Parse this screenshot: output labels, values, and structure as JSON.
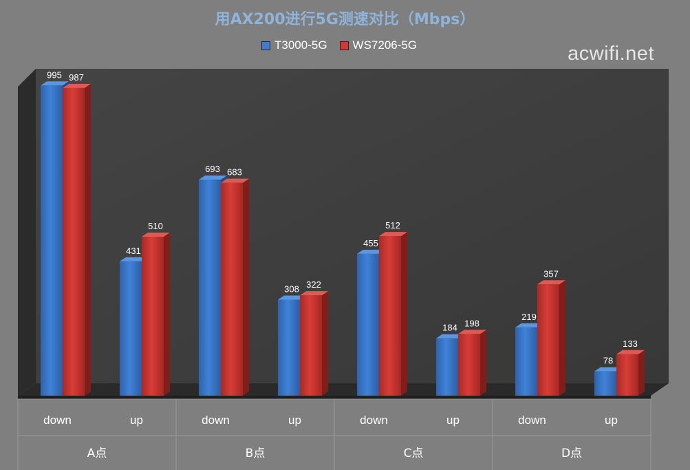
{
  "title": "用AX200进行5G测速对比（Mbps）",
  "watermark": "acwifi.net",
  "colors": {
    "series1": "#3d7dd0",
    "series2": "#d03a36",
    "background": "#7f7f7f",
    "plot": "#404040"
  },
  "chart_data": {
    "type": "bar",
    "title": "用AX200进行5G测速对比（Mbps）",
    "xlabel": "",
    "ylabel": "",
    "ylim": [
      0,
      1000
    ],
    "grid": false,
    "legend": "top-center",
    "categories": [
      "down",
      "up",
      "down",
      "up",
      "down",
      "up",
      "down",
      "up"
    ],
    "groups": [
      "A点",
      "B点",
      "C点",
      "D点"
    ],
    "series": [
      {
        "name": "T3000-5G",
        "values": [
          995,
          431,
          693,
          308,
          455,
          184,
          219,
          78
        ]
      },
      {
        "name": "WS7206-5G",
        "values": [
          987,
          510,
          683,
          322,
          512,
          198,
          357,
          133
        ]
      }
    ]
  }
}
